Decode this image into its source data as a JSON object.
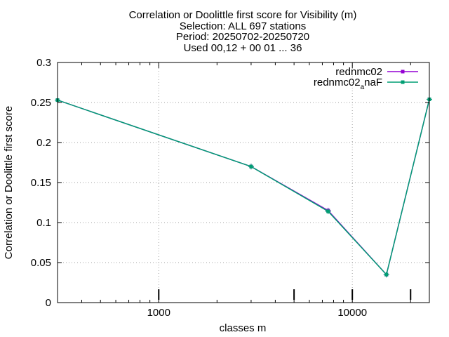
{
  "chart_data": {
    "type": "line",
    "title_lines": [
      "Correlation or Doolittle first score  for Visibility (m)",
      "Selection: ALL    697 stations",
      "Period: 20250702-20250720",
      "Used 00,12 + 00 01 ... 36"
    ],
    "xlabel": "classes m",
    "ylabel": "Correlation or Doolittle first score",
    "x_scale": "log",
    "xlim": [
      300,
      25000
    ],
    "ylim": [
      0,
      0.3
    ],
    "x_ticks": [
      1000,
      10000
    ],
    "x_tick_labels": [
      "1000",
      "10000"
    ],
    "y_ticks": [
      0,
      0.05,
      0.1,
      0.15,
      0.2,
      0.25,
      0.3
    ],
    "y_tick_labels": [
      "0",
      "0.05",
      "0.1",
      "0.15",
      "0.2",
      "0.25",
      "0.3"
    ],
    "grid": true,
    "legend_position": "top-right",
    "series": [
      {
        "name": "rednmc02",
        "color": "#9400d3",
        "x": [
          300,
          3000,
          7500,
          15000,
          25000
        ],
        "y": [
          0.253,
          0.17,
          0.115,
          0.035,
          0.254
        ]
      },
      {
        "name_main": "rednmc02",
        "name_sub": "a",
        "name_tail": "naF",
        "color": "#009e73",
        "x": [
          300,
          3000,
          7500,
          15000,
          25000
        ],
        "y": [
          0.253,
          0.17,
          0.114,
          0.035,
          0.254
        ]
      }
    ],
    "observation_markers_x": [
      1000,
      5000,
      10000,
      20000
    ]
  }
}
